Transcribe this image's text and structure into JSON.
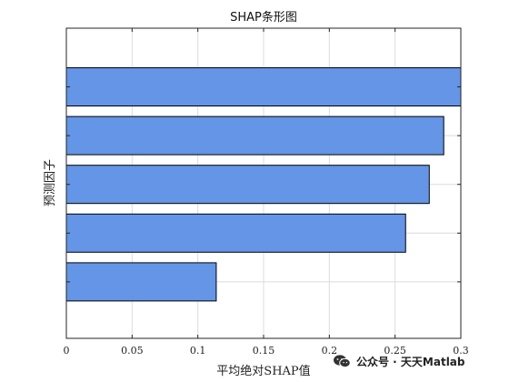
{
  "chart_data": {
    "type": "bar",
    "orientation": "horizontal",
    "title": "SHAP条形图",
    "xlabel": "平均绝对SHAP值",
    "ylabel": "预测因子",
    "categories": [
      "",
      "",
      "",
      "",
      ""
    ],
    "values": [
      0.3,
      0.287,
      0.276,
      0.258,
      0.114
    ],
    "xlim": [
      0,
      0.3
    ],
    "xticks": [
      0,
      0.05,
      0.1,
      0.15,
      0.2,
      0.25,
      0.3
    ],
    "xtick_labels": [
      "0",
      "0.05",
      "0.1",
      "0.15",
      "0.2",
      "0.25",
      "0.3"
    ],
    "grid": true,
    "colors": {
      "bar": "#6495e6",
      "bar_edge": "#000000",
      "grid": "#dcdcdc",
      "axis": "#262626"
    }
  },
  "watermark": {
    "icon": "wechat-icon",
    "text": "公众号 · 天天Matlab"
  }
}
